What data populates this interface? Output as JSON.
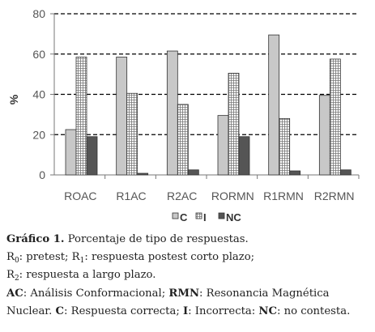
{
  "chart_data": {
    "type": "bar",
    "categories": [
      "ROAC",
      "R1AC",
      "R2AC",
      "RORMN",
      "R1RMN",
      "R2RMN"
    ],
    "series": [
      {
        "name": "C",
        "values": [
          22.5,
          58.5,
          61.5,
          29.5,
          69.5,
          39.5
        ],
        "color": "#c8c8c8",
        "pattern": "solid"
      },
      {
        "name": "I",
        "values": [
          58.5,
          40.5,
          35,
          50.5,
          28,
          57.5
        ],
        "color": "#ffffff",
        "pattern": "grid"
      },
      {
        "name": "NC",
        "values": [
          19,
          0.8,
          2.5,
          19,
          2,
          2.5
        ],
        "color": "#555555",
        "pattern": "solid"
      }
    ],
    "ylabel": "%",
    "ylim": [
      0,
      80
    ],
    "yticks": [
      "0",
      "20",
      "40",
      "60",
      "80"
    ],
    "grid": "dashed-horizontal",
    "legend_position": "bottom"
  },
  "caption": {
    "line1_label": "Gráfico 1.",
    "line1_text": " Porcentaje de tipo de respuestas.",
    "line2_r0": "R",
    "line2_r0_sub": "0",
    "line2_text_a": ": pretest; R",
    "line2_r1_sub": "1",
    "line2_text_b": ": respuesta postest corto plazo;",
    "line3_r": "R",
    "line3_sub": "2",
    "line3_text": ": respuesta a largo plazo.",
    "line4_ac": "AC",
    "line4_text_a": ": Análisis Conformacional; ",
    "line4_rmn": "RMN",
    "line4_text_b": ": Resonancia Magnética",
    "line5_text_a": "Nuclear. ",
    "line5_c": "C",
    "line5_text_b": ": Respuesta correcta; ",
    "line5_i": "I",
    "line5_text_c": ": Incorrecta: ",
    "line5_nc": "NC",
    "line5_text_d": ": no contesta."
  }
}
